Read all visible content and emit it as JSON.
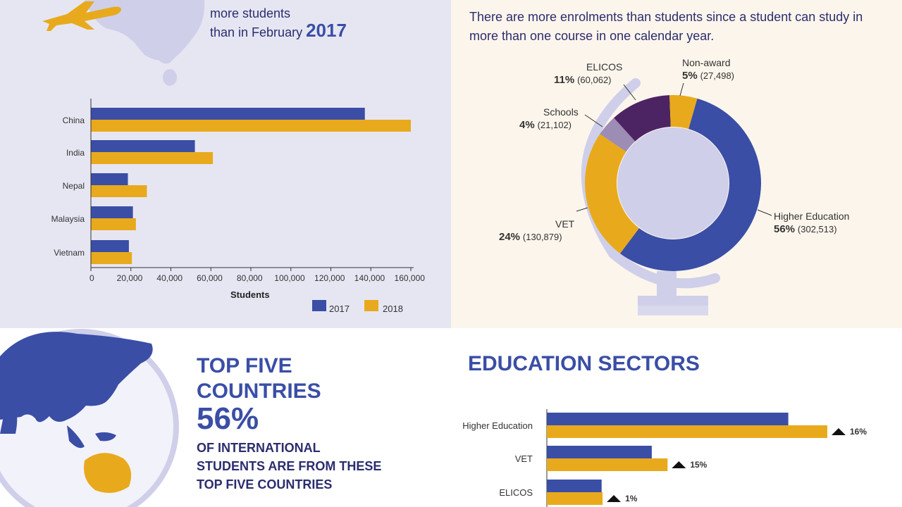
{
  "headline": {
    "line1": "more students",
    "line2": "than in February",
    "year": "2017"
  },
  "note": "There are more enrolments than students since a student can study in more than one course in one calendar year.",
  "top_countries": {
    "title_line1": "TOP FIVE",
    "title_line2": "COUNTRIES",
    "percent": "56%",
    "text_line1": "OF INTERNATIONAL",
    "text_line2": "STUDENTS ARE FROM THESE",
    "text_line3": "TOP FIVE COUNTRIES"
  },
  "sectors_title": "EDUCATION SECTORS",
  "colors": {
    "series_2017": "#3a4ea6",
    "series_2018": "#e8aa1c",
    "schools": "#9d8cb3",
    "elicos": "#4d2463",
    "globe": "#cfcfea"
  },
  "chart_data": [
    {
      "type": "bar",
      "orientation": "horizontal",
      "categories": [
        "China",
        "India",
        "Nepal",
        "Malaysia",
        "Vietnam"
      ],
      "series": [
        {
          "name": "2017",
          "values": [
            137000,
            52000,
            18500,
            21000,
            19000
          ]
        },
        {
          "name": "2018",
          "values": [
            160000,
            61000,
            28000,
            22500,
            20500
          ]
        }
      ],
      "xlabel": "Students",
      "xlim": [
        0,
        160000
      ],
      "xticks": [
        "0",
        "20,000",
        "40,000",
        "60,000",
        "80,000",
        "100,000",
        "120,000",
        "140,000",
        "160,000"
      ],
      "legend": [
        "2017",
        "2018"
      ],
      "legend_position": "bottom-right"
    },
    {
      "type": "pie",
      "donut": true,
      "slices": [
        {
          "label": "Higher Education",
          "percent": "56%",
          "count": "(302,513)",
          "value": 302513
        },
        {
          "label": "VET",
          "percent": "24%",
          "count": "(130,879)",
          "value": 130879
        },
        {
          "label": "Schools",
          "percent": "4%",
          "count": "(21,102)",
          "value": 21102
        },
        {
          "label": "ELICOS",
          "percent": "11%",
          "count": "(60,062)",
          "value": 60062
        },
        {
          "label": "Non-award",
          "percent": "5%",
          "count": "(27,498)",
          "value": 27498
        }
      ]
    },
    {
      "type": "bar",
      "orientation": "horizontal",
      "categories": [
        "Higher Education",
        "VET",
        "ELICOS"
      ],
      "series": [
        {
          "name": "2017",
          "values": [
            260000,
            113000,
            59000
          ]
        },
        {
          "name": "2018",
          "values": [
            302000,
            130000,
            60000
          ]
        }
      ],
      "growth": [
        "16%",
        "15%",
        "1%"
      ]
    }
  ]
}
